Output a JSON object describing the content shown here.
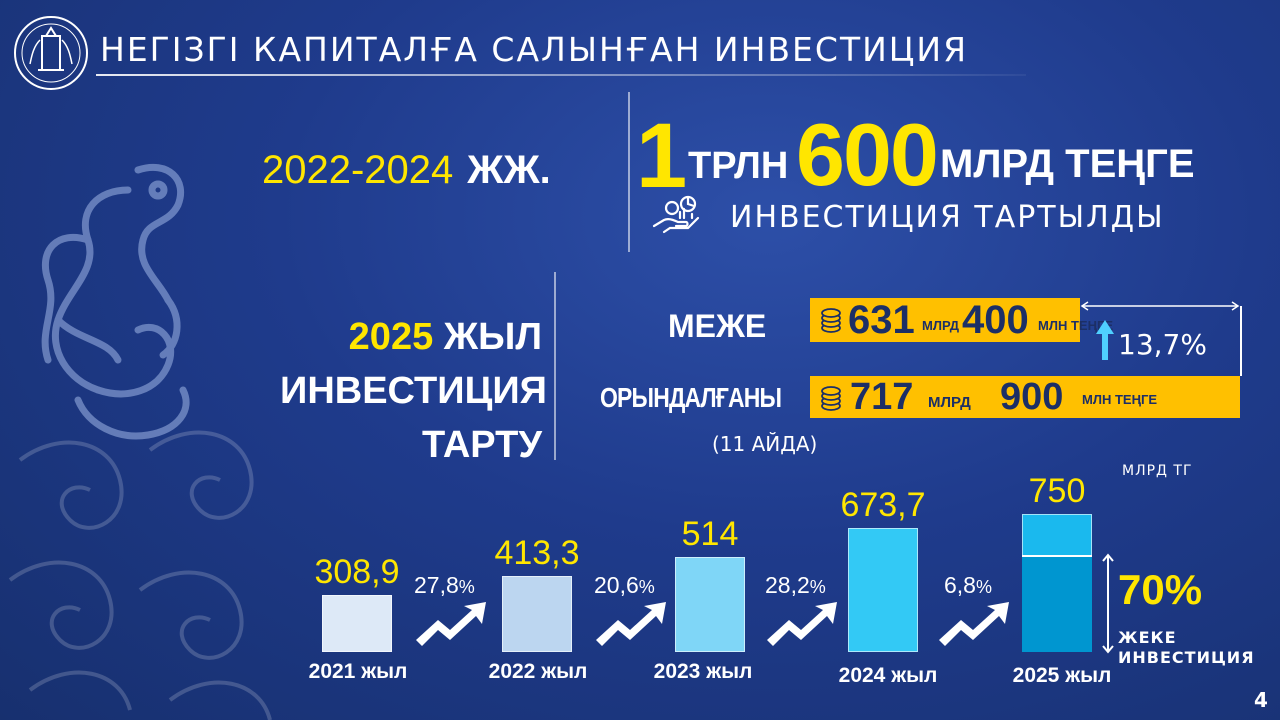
{
  "header": {
    "title": "НЕГІЗГІ КАПИТАЛҒА САЛЫНҒАН ИНВЕСТИЦИЯ"
  },
  "summary": {
    "period": "2022-2024",
    "period_suffix": "ЖЖ.",
    "amount_trln": "1",
    "trln_unit": "ТРЛН",
    "amount_mlrd": "600",
    "mlrd_unit": "МЛРД ТЕҢГЕ",
    "description": "ИНВЕСТИЦИЯ ТАРТЫЛДЫ"
  },
  "plan2025": {
    "year": "2025",
    "line1_suffix": "ЖЫЛ",
    "line2": "ИНВЕСТИЦИЯ",
    "line3": "ТАРТУ",
    "plan_label": "МЕЖЕ",
    "plan_mlrd": "631",
    "plan_mlrd_unit": "МЛРД",
    "plan_mln": "400",
    "plan_mln_unit": "МЛН ТЕҢГЕ",
    "done_label": "ОРЫНДАЛҒАНЫ",
    "done_period": "(11 АЙДА)",
    "done_mlrd": "717",
    "done_mlrd_unit": "МЛРД",
    "done_mln": "900",
    "done_mln_unit": "МЛН ТЕҢГЕ",
    "plan_value": 631.4,
    "done_value": 717.9,
    "excess_pct": "13,7%"
  },
  "chart_data": {
    "type": "bar",
    "unit_label": "МЛРД ТГ",
    "categories": [
      "2021 жыл",
      "2022 жыл",
      "2023 жыл",
      "2024 жыл",
      "2025 жыл"
    ],
    "values": [
      308.9,
      413.3,
      514,
      673.7,
      750
    ],
    "value_labels": [
      "308,9",
      "413,3",
      "514",
      "673,7",
      "750"
    ],
    "colors": [
      "#dde9f7",
      "#bcd6f0",
      "#7fd6f7",
      "#33c9f5",
      "#1ab9ee"
    ],
    "growth": [
      {
        "num": "27,8",
        "sign": "%"
      },
      {
        "num": "20,6",
        "sign": "%"
      },
      {
        "num": "28,2",
        "sign": "%"
      },
      {
        "num": "6,8",
        "sign": "%"
      }
    ],
    "private_share_pct": 70,
    "private_share_label": "70%",
    "private_label_line1": "ЖЕКЕ",
    "private_label_line2": "ИНВЕСТИЦИЯ",
    "private_color": "#0096d0"
  },
  "footer": {
    "page_number": "4"
  }
}
